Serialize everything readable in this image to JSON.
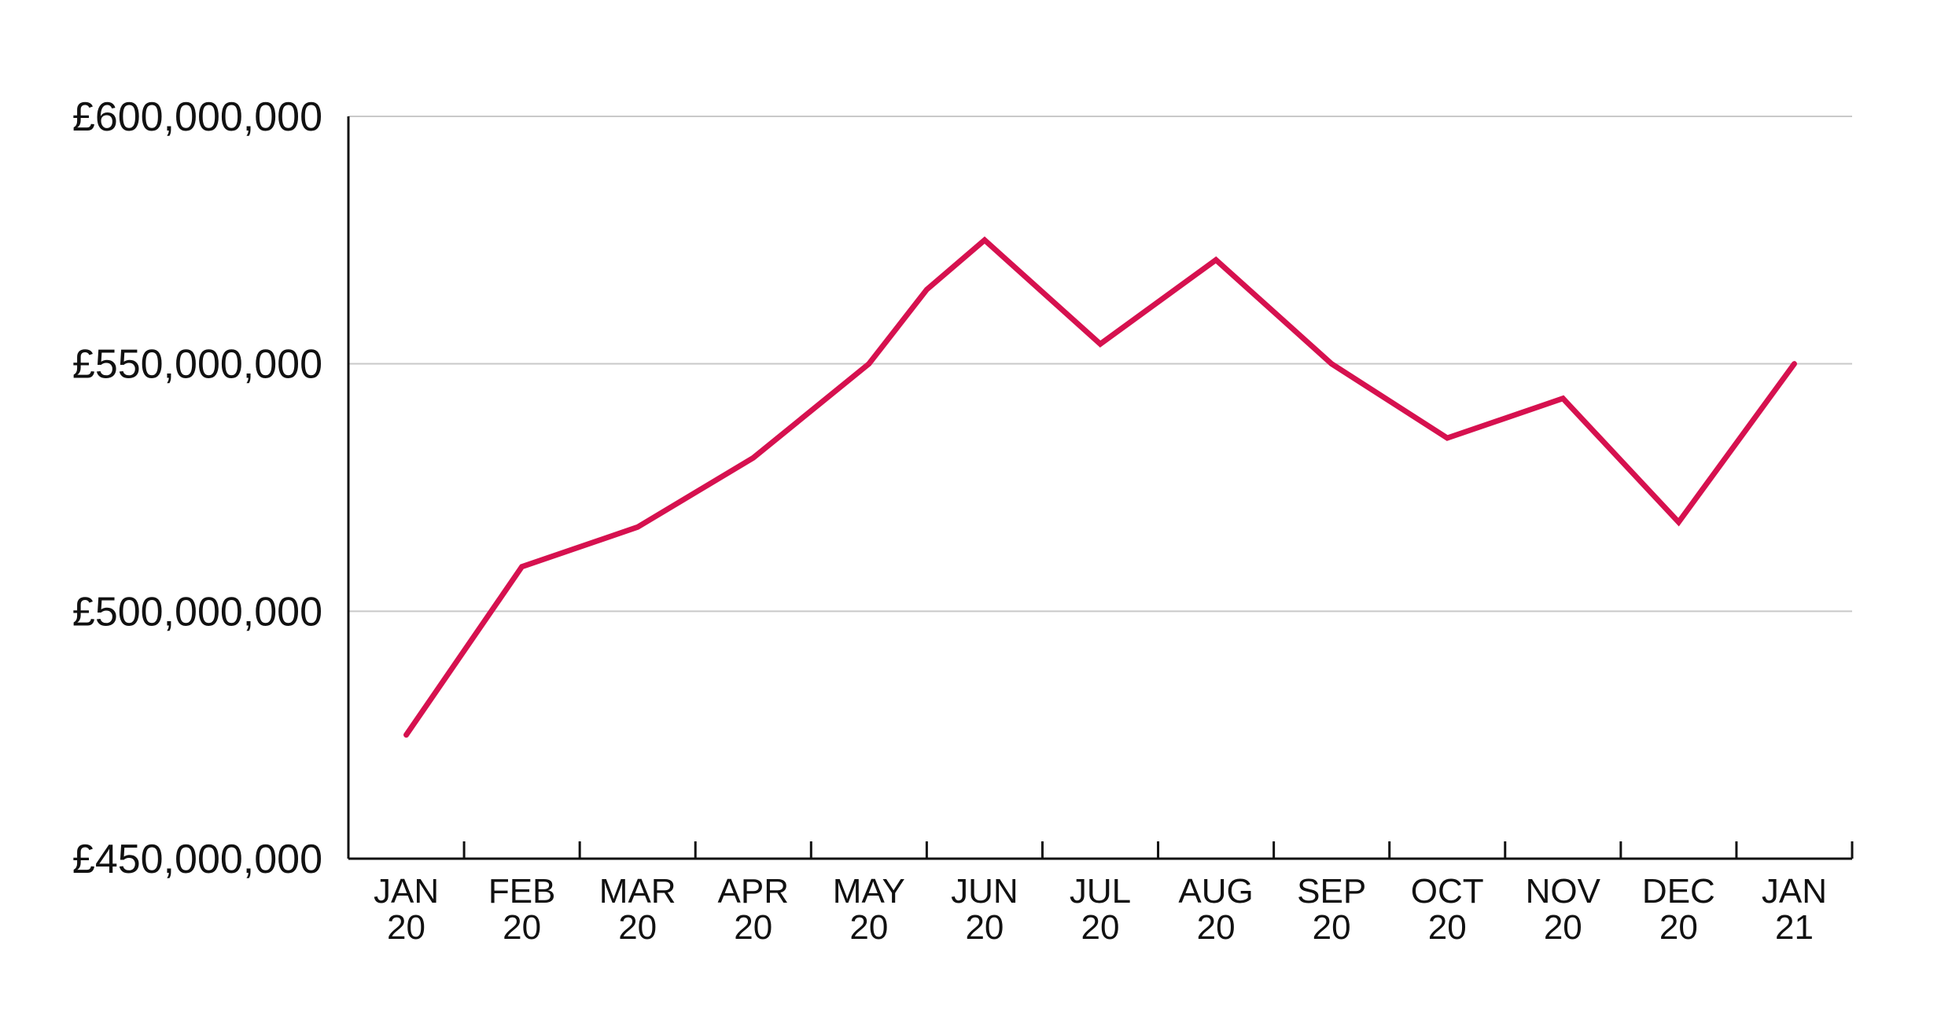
{
  "chart_data": {
    "type": "line",
    "title": "",
    "xlabel": "",
    "ylabel": "",
    "categories": [
      [
        "JAN",
        "20"
      ],
      [
        "FEB",
        "20"
      ],
      [
        "MAR",
        "20"
      ],
      [
        "APR",
        "20"
      ],
      [
        "MAY",
        "20"
      ],
      [
        "JUN",
        "20"
      ],
      [
        "JUL",
        "20"
      ],
      [
        "AUG",
        "20"
      ],
      [
        "SEP",
        "20"
      ],
      [
        "OCT",
        "20"
      ],
      [
        "NOV",
        "20"
      ],
      [
        "DEC",
        "20"
      ],
      [
        "JAN",
        "21"
      ]
    ],
    "series": [
      {
        "values": [
          475000000,
          509000000,
          517000000,
          531000000,
          550000000,
          575000000,
          554000000,
          571000000,
          550000000,
          535000000,
          543000000,
          518000000,
          550000000
        ],
        "extra_points": [
          {
            "after_index": 4,
            "value": 565000000
          }
        ]
      }
    ],
    "ylim": [
      450000000,
      600000000
    ],
    "yticks": [
      450000000,
      500000000,
      550000000,
      600000000
    ],
    "ytick_labels": [
      "£450,000,000",
      "£500,000,000",
      "£550,000,000",
      "£600,000,000"
    ],
    "grid": "horizontal",
    "legend": "none",
    "colors": {
      "line": "#d6114f",
      "axis": "#111111",
      "grid": "#c9c9c9",
      "text": "#111111"
    }
  }
}
